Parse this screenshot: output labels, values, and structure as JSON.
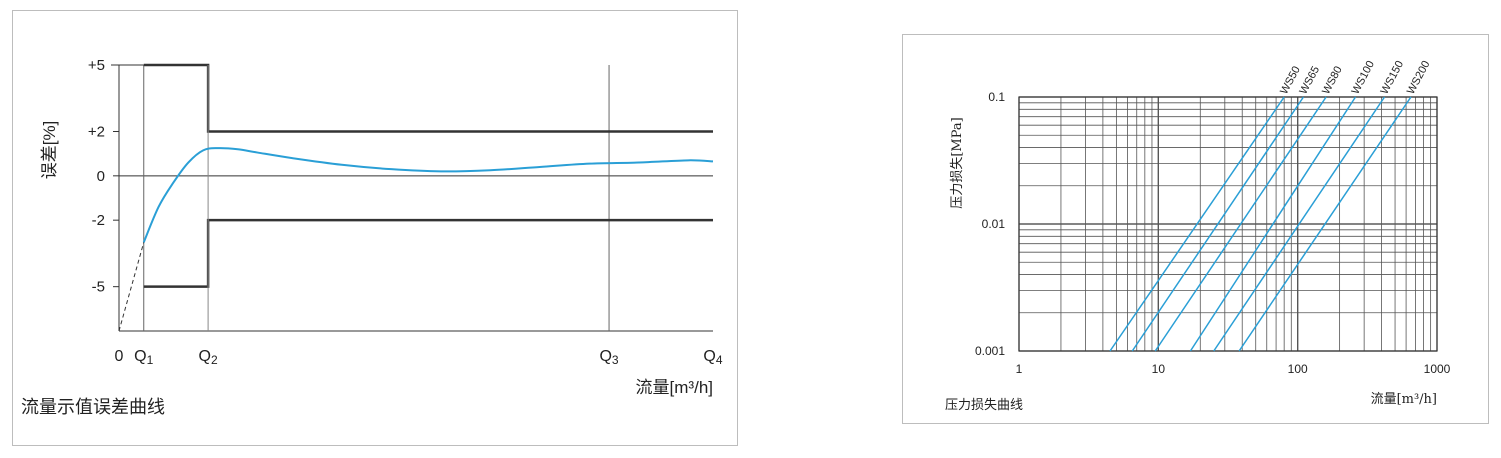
{
  "chart_data": [
    {
      "type": "line",
      "title": "流量示值误差曲线",
      "xlabel": "流量[m³/h]",
      "ylabel": "误差[%]",
      "y_ticks": [
        "+5",
        "+2",
        "0",
        "-2",
        "-5"
      ],
      "y_values": [
        5,
        2,
        0,
        -2,
        -5
      ],
      "x_ticks": [
        {
          "main": "0",
          "sub": ""
        },
        {
          "main": "Q",
          "sub": "1"
        },
        {
          "main": "Q",
          "sub": "2"
        },
        {
          "main": "Q",
          "sub": "3"
        },
        {
          "main": "Q",
          "sub": "4"
        }
      ],
      "x_positions": [
        0,
        0.5,
        1.8,
        9.9,
        12.0
      ],
      "ylim": [
        -7,
        5
      ],
      "xlim": [
        0,
        12
      ],
      "grid": false,
      "limit_envelope": {
        "upper": [
          [
            0.5,
            5
          ],
          [
            1.8,
            5
          ],
          [
            1.8,
            2
          ],
          [
            12,
            2
          ]
        ],
        "lower": [
          [
            0.5,
            -5
          ],
          [
            1.8,
            -5
          ],
          [
            1.8,
            -2
          ],
          [
            12,
            -2
          ]
        ]
      },
      "dashed_segment": [
        [
          0,
          -7
        ],
        [
          0.5,
          -3
        ]
      ],
      "series": [
        {
          "x": [
            0.5,
            0.8,
            1.1,
            1.4,
            1.7,
            2.0,
            2.4,
            2.8,
            3.5,
            4.5,
            5.5,
            6.5,
            7.5,
            8.5,
            9.5,
            10.5,
            11.5,
            12.0
          ],
          "y": [
            -3.0,
            -1.4,
            -0.3,
            0.6,
            1.15,
            1.25,
            1.2,
            1.05,
            0.8,
            0.5,
            0.3,
            0.2,
            0.25,
            0.4,
            0.55,
            0.6,
            0.7,
            0.65
          ],
          "color": "#2a9fd6"
        }
      ]
    },
    {
      "type": "line",
      "title": "压力损失曲线",
      "xlabel": "流量[m³/h]",
      "ylabel": "压力损失[MPa]",
      "x_scale": "log",
      "y_scale": "log",
      "xlim": [
        1,
        1000
      ],
      "ylim": [
        0.001,
        0.1
      ],
      "x_tick_labels": [
        "1",
        "10",
        "100",
        "1000"
      ],
      "x_tick_values": [
        1,
        10,
        100,
        1000
      ],
      "y_tick_labels": [
        "0.1",
        "0.01",
        "0.001"
      ],
      "y_tick_values": [
        0.1,
        0.01,
        0.001
      ],
      "grid": true,
      "series": [
        {
          "name": "WS50",
          "x": [
            4.5,
            80
          ],
          "y": [
            0.001,
            0.1
          ],
          "color": "#2a9fd6"
        },
        {
          "name": "WS65",
          "x": [
            6.5,
            110
          ],
          "y": [
            0.001,
            0.1
          ],
          "color": "#2a9fd6"
        },
        {
          "name": "WS80",
          "x": [
            9.5,
            160
          ],
          "y": [
            0.001,
            0.1
          ],
          "color": "#2a9fd6"
        },
        {
          "name": "WS100",
          "x": [
            17,
            260
          ],
          "y": [
            0.001,
            0.1
          ],
          "color": "#2a9fd6"
        },
        {
          "name": "WS150",
          "x": [
            25,
            420
          ],
          "y": [
            0.001,
            0.1
          ],
          "color": "#2a9fd6"
        },
        {
          "name": "WS200",
          "x": [
            38,
            650
          ],
          "y": [
            0.001,
            0.1
          ],
          "color": "#2a9fd6"
        }
      ]
    }
  ]
}
